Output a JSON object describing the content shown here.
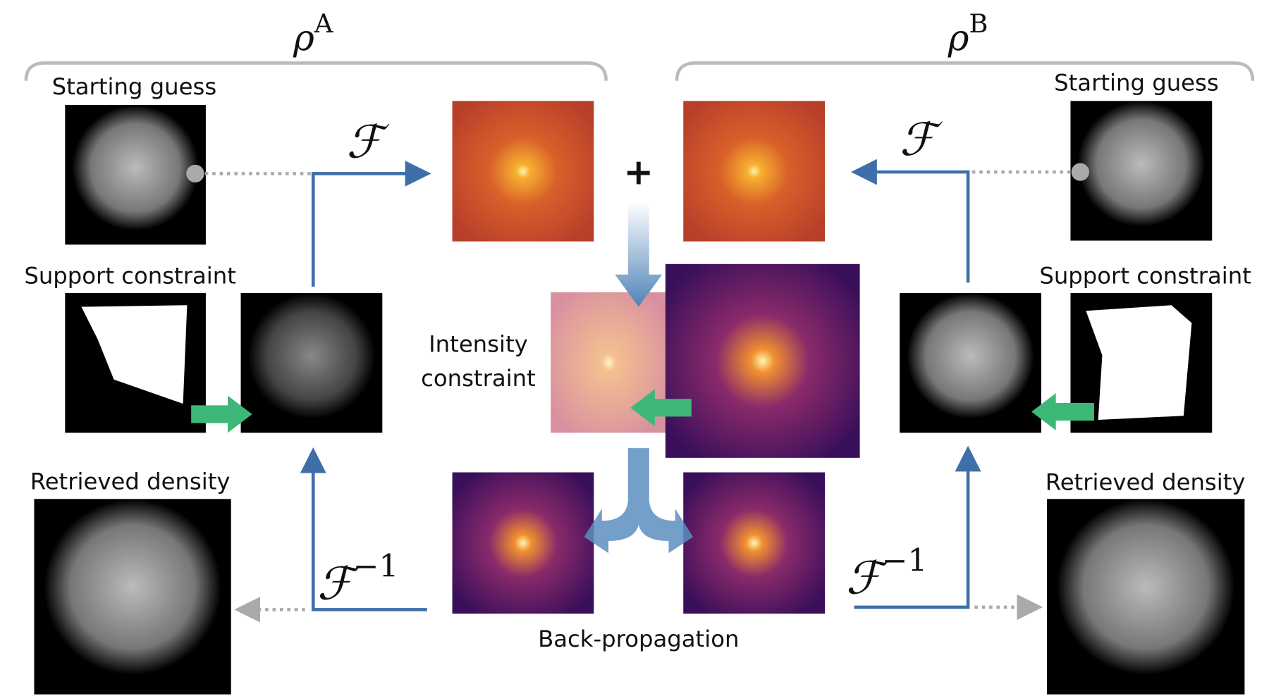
{
  "panel_a": {
    "label": {
      "symbol": "ρ",
      "superscript": "A"
    },
    "starting_guess": "Starting guess",
    "support_constraint": "Support constraint",
    "retrieved_density": "Retrieved density",
    "forward": "ℱ",
    "inverse": {
      "symbol": "ℱ",
      "superscript": "−1"
    }
  },
  "panel_b": {
    "label": {
      "symbol": "ρ",
      "superscript": "B"
    },
    "starting_guess": "Starting guess",
    "support_constraint": "Support constraint",
    "retrieved_density": "Retrieved density",
    "forward": "ℱ",
    "inverse": {
      "symbol": "ℱ",
      "superscript": "−1"
    }
  },
  "center": {
    "plus": "+",
    "intensity_constraint": [
      "Intensity",
      "constraint"
    ],
    "back_propagation": "Back-propagation"
  }
}
